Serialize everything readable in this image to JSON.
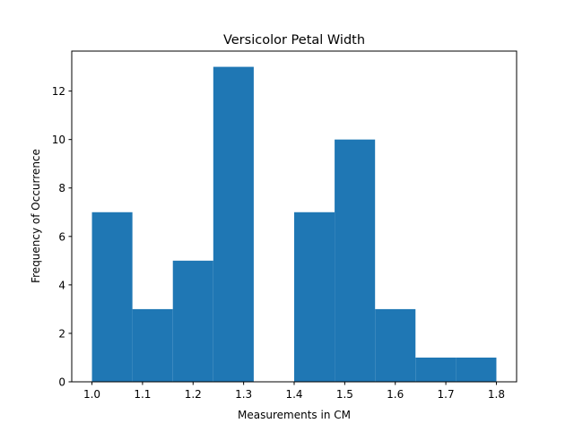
{
  "chart_data": {
    "type": "bar",
    "title": "Versicolor Petal Width",
    "xlabel": "Measurements in CM",
    "ylabel": "Frequency of Occurrence",
    "bar_color": "#1f77b4",
    "xlim": [
      0.96,
      1.84
    ],
    "ylim": [
      0,
      13.65
    ],
    "bins": [
      {
        "start": 1.0,
        "end": 1.08,
        "count": 7
      },
      {
        "start": 1.08,
        "end": 1.16,
        "count": 3
      },
      {
        "start": 1.16,
        "end": 1.24,
        "count": 5
      },
      {
        "start": 1.24,
        "end": 1.32,
        "count": 13
      },
      {
        "start": 1.32,
        "end": 1.4,
        "count": 0
      },
      {
        "start": 1.4,
        "end": 1.48,
        "count": 7
      },
      {
        "start": 1.48,
        "end": 1.56,
        "count": 10
      },
      {
        "start": 1.56,
        "end": 1.64,
        "count": 3
      },
      {
        "start": 1.64,
        "end": 1.72,
        "count": 1
      },
      {
        "start": 1.72,
        "end": 1.8,
        "count": 1
      }
    ],
    "xticks": [
      {
        "value": 1.0,
        "label": "1.0"
      },
      {
        "value": 1.1,
        "label": "1.1"
      },
      {
        "value": 1.2,
        "label": "1.2"
      },
      {
        "value": 1.3,
        "label": "1.3"
      },
      {
        "value": 1.4,
        "label": "1.4"
      },
      {
        "value": 1.5,
        "label": "1.5"
      },
      {
        "value": 1.6,
        "label": "1.6"
      },
      {
        "value": 1.7,
        "label": "1.7"
      },
      {
        "value": 1.8,
        "label": "1.8"
      }
    ],
    "yticks": [
      {
        "value": 0,
        "label": "0"
      },
      {
        "value": 2,
        "label": "2"
      },
      {
        "value": 4,
        "label": "4"
      },
      {
        "value": 6,
        "label": "6"
      },
      {
        "value": 8,
        "label": "8"
      },
      {
        "value": 10,
        "label": "10"
      },
      {
        "value": 12,
        "label": "12"
      }
    ],
    "grid": false,
    "legend": "none"
  }
}
